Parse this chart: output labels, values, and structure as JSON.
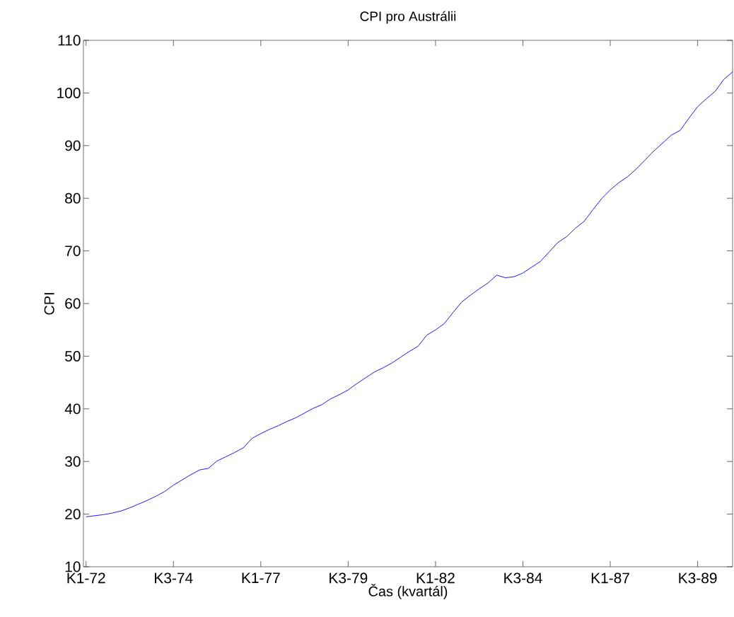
{
  "chart_data": {
    "type": "line",
    "title": "CPI pro Austrálii",
    "xlabel": "Čas (kvartál)",
    "ylabel": "CPI",
    "categories": [
      "K1-72",
      null,
      null,
      null,
      null,
      null,
      null,
      null,
      null,
      null,
      "K3-74",
      null,
      null,
      null,
      null,
      null,
      null,
      null,
      null,
      null,
      "K1-77",
      null,
      null,
      null,
      null,
      null,
      null,
      null,
      null,
      null,
      "K3-79",
      null,
      null,
      null,
      null,
      null,
      null,
      null,
      null,
      null,
      "K1-82",
      null,
      null,
      null,
      null,
      null,
      null,
      null,
      null,
      null,
      "K3-84",
      null,
      null,
      null,
      null,
      null,
      null,
      null,
      null,
      null,
      "K1-87",
      null,
      null,
      null,
      null,
      null,
      null,
      null,
      null,
      null,
      "K3-89",
      null,
      null,
      null,
      null
    ],
    "series": [
      {
        "color": "#0000ff",
        "values": [
          19.5,
          19.7,
          19.9,
          20.2,
          20.6,
          21.2,
          21.9,
          22.6,
          23.4,
          24.3,
          25.5,
          26.5,
          27.5,
          28.4,
          28.7,
          30.1,
          30.9,
          31.7,
          32.6,
          34.4,
          35.3,
          36.1,
          36.8,
          37.6,
          38.3,
          39.2,
          40.1,
          40.8,
          41.9,
          42.7,
          43.6,
          44.8,
          45.9,
          47.0,
          47.8,
          48.7,
          49.8,
          50.9,
          51.9,
          54.0,
          55.0,
          56.2,
          58.3,
          60.3,
          61.6,
          62.8,
          63.9,
          65.4,
          64.9,
          65.1,
          65.8,
          66.9,
          68.0,
          69.8,
          71.6,
          72.7,
          74.3,
          75.6,
          77.8,
          79.9,
          81.6,
          83.0,
          84.1,
          85.6,
          87.3,
          89.0,
          90.5,
          92.0,
          92.9,
          95.2,
          97.4,
          98.9,
          100.3,
          102.6,
          104.0
        ]
      }
    ],
    "ylim": [
      10,
      110
    ],
    "yticks": [
      10,
      20,
      30,
      40,
      50,
      60,
      70,
      80,
      90,
      100,
      110
    ],
    "grid": false,
    "marker": "none",
    "line_style": "solid"
  }
}
